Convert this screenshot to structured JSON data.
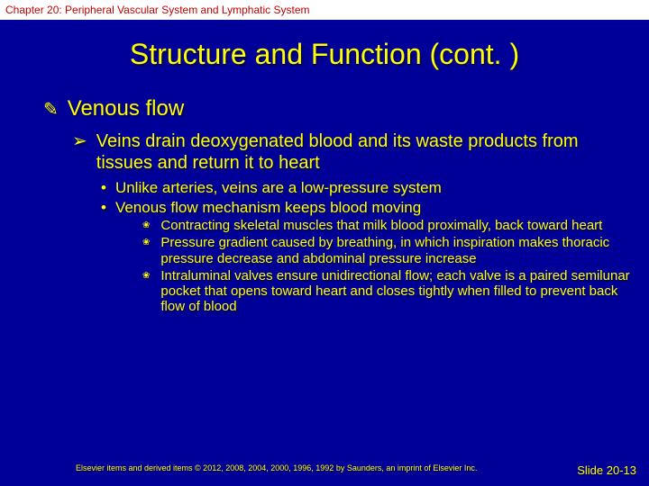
{
  "colors": {
    "background": "#000099",
    "text": "#ffff00",
    "header": "#c00000",
    "header_bg": "#ffffff"
  },
  "header": "Chapter 20: Peripheral Vascular System and Lymphatic System",
  "title": "Structure and Function (cont. )",
  "l1": {
    "bullet": "✎",
    "text": "Venous flow"
  },
  "l2": {
    "bullet": "➢",
    "text": "Veins drain deoxygenated blood and its waste products from tissues and return it to heart"
  },
  "l3a": {
    "bullet": "•",
    "text": "Unlike arteries, veins are a low-pressure system"
  },
  "l3b": {
    "bullet": "•",
    "text": "Venous flow mechanism keeps blood moving"
  },
  "l4a": {
    "bullet": "❀",
    "text": "Contracting skeletal muscles that milk blood proximally, back toward heart"
  },
  "l4b": {
    "bullet": "❀",
    "text": "Pressure gradient caused by breathing, in which inspiration makes thoracic pressure decrease and abdominal pressure increase"
  },
  "l4c": {
    "bullet": "❀",
    "text": "Intraluminal valves ensure unidirectional flow; each valve is a paired semilunar pocket that opens toward heart and closes tightly when filled to prevent back flow of blood"
  },
  "footer": {
    "left": "Elsevier items and derived items © 2012, 2008, 2004, 2000, 1996, 1992 by Saunders, an imprint of Elsevier Inc.",
    "right": "Slide 20-13"
  }
}
